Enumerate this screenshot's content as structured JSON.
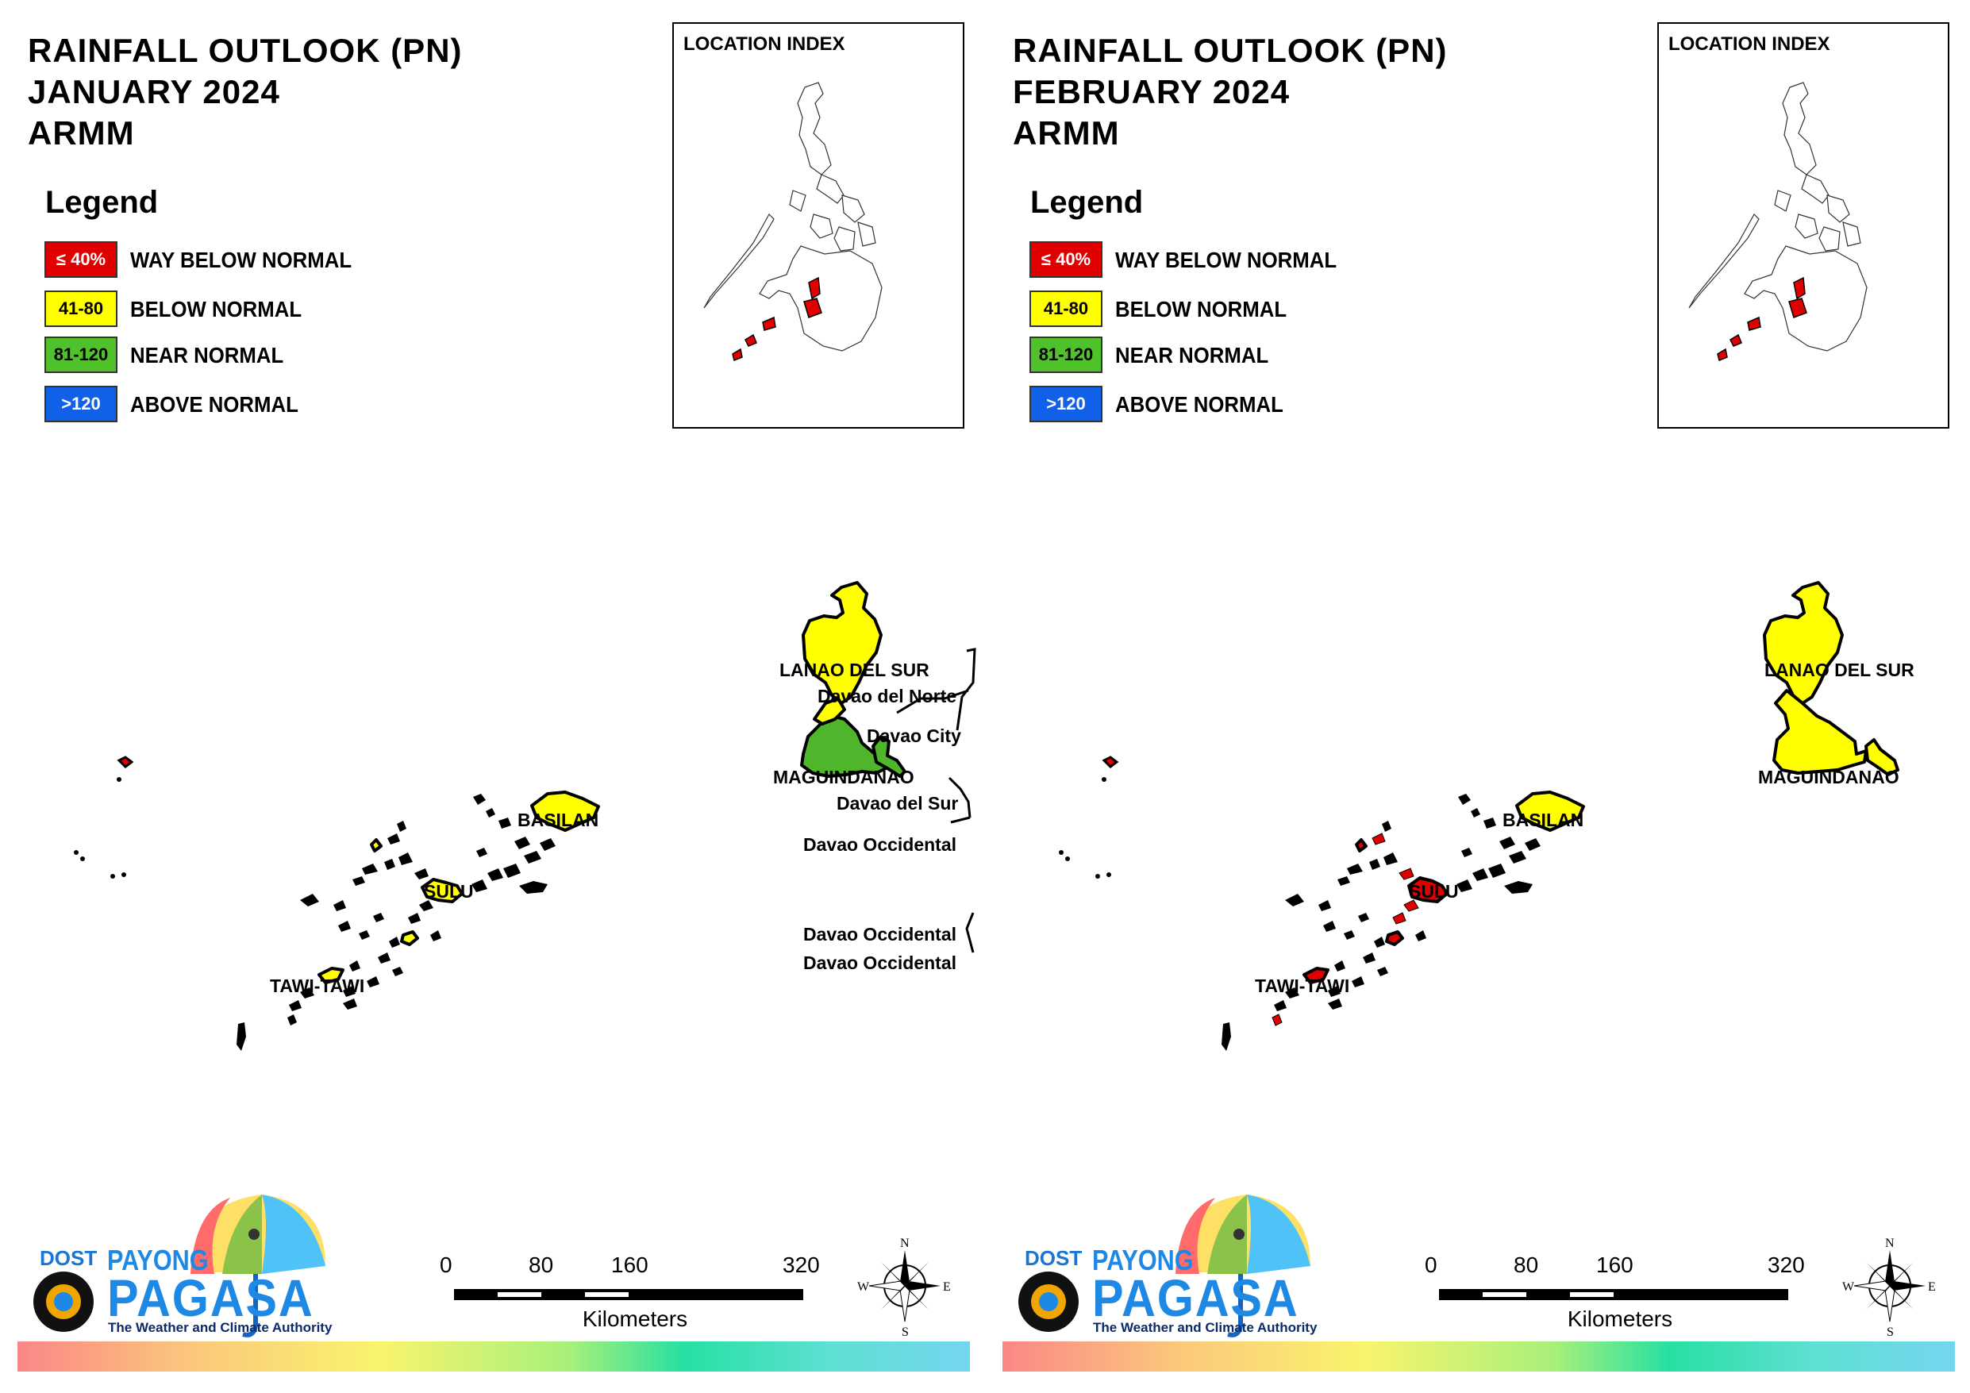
{
  "legend": {
    "title": "Legend",
    "items": [
      {
        "range": "≤ 40%",
        "label": "WAY BELOW NORMAL",
        "color": "#e00000",
        "text_color": "#ffffff"
      },
      {
        "range": "41-80",
        "label": "BELOW NORMAL",
        "color": "#ffff00",
        "text_color": "#000000"
      },
      {
        "range": "81-120",
        "label": "NEAR NORMAL",
        "color": "#4fc12a",
        "text_color": "#000000"
      },
      {
        "range": ">120",
        "label": "ABOVE NORMAL",
        "color": "#1060e8",
        "text_color": "#ffffff"
      }
    ]
  },
  "location_index_title": "LOCATION INDEX",
  "panels": [
    {
      "title_line1": "RAINFALL OUTLOOK (PN)",
      "title_line2": "JANUARY 2024",
      "title_line3": "ARMM",
      "region_colors": {
        "lanao_del_sur": "#ffff00",
        "maguindanao": "#4fb52a",
        "basilan": "#ffff00",
        "sulu": "#ffff00",
        "tawi_tawi": "#ffff00",
        "islets": "#000000"
      },
      "map_labels": {
        "lanao_del_sur": "LANAO DEL SUR",
        "davao_del_norte": "Davao del Norte",
        "davao_city": "Davao City",
        "maguindanao": "MAGUINDANAO",
        "davao_del_sur": "Davao del Sur",
        "davao_occidental_1": "Davao Occidental",
        "davao_occidental_2": "Davao Occidental",
        "davao_occidental_3": "Davao Occidental",
        "basilan": "BASILAN",
        "sulu": "SULU",
        "tawi_tawi": "TAWI-TAWI"
      }
    },
    {
      "title_line1": "RAINFALL OUTLOOK (PN)",
      "title_line2": "FEBRUARY 2024",
      "title_line3": "ARMM",
      "region_colors": {
        "lanao_del_sur": "#ffff00",
        "maguindanao": "#ffff00",
        "basilan": "#ffff00",
        "sulu": "#e00000",
        "tawi_tawi": "#e00000",
        "islets": "#e00000"
      },
      "map_labels": {
        "lanao_del_sur": "LANAO DEL SUR",
        "maguindanao": "MAGUINDANAO",
        "basilan": "BASILAN",
        "sulu": "SULU",
        "tawi_tawi": "TAWI-TAWI"
      }
    }
  ],
  "logo": {
    "dost": "DOST",
    "payong": "PAYONG",
    "pagasa": "PAGASA",
    "tagline": "The Weather and Climate Authority"
  },
  "scale": {
    "ticks": [
      "0",
      "80",
      "160",
      "320"
    ],
    "units": "Kilometers"
  },
  "compass": {
    "n": "N",
    "s": "S",
    "e": "E",
    "w": "W"
  }
}
